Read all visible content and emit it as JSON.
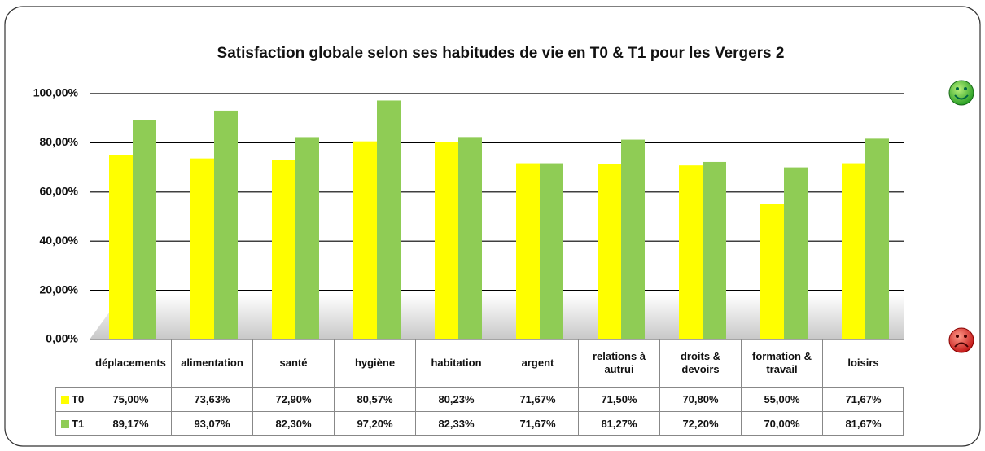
{
  "chart_data": {
    "type": "bar",
    "title": "Satisfaction  globale selon ses habitudes de vie en T0 & T1 pour les Vergers 2",
    "categories": [
      "déplacements",
      "alimentation",
      "santé",
      "hygiène",
      "habitation",
      "argent",
      "relations à autrui",
      "droits & devoirs",
      "formation & travail",
      "loisirs"
    ],
    "series": [
      {
        "name": "T0",
        "color": "#ffff00",
        "values": [
          75.0,
          73.63,
          72.9,
          80.57,
          80.23,
          71.67,
          71.5,
          70.8,
          55.0,
          71.67
        ],
        "value_labels": [
          "75,00%",
          "73,63%",
          "72,90%",
          "80,57%",
          "80,23%",
          "71,67%",
          "71,50%",
          "70,80%",
          "55,00%",
          "71,67%"
        ]
      },
      {
        "name": "T1",
        "color": "#8fcc55",
        "values": [
          89.17,
          93.07,
          82.3,
          97.2,
          82.33,
          71.67,
          81.27,
          72.2,
          70.0,
          81.67
        ],
        "value_labels": [
          "89,17%",
          "93,07%",
          "82,30%",
          "97,20%",
          "82,33%",
          "71,67%",
          "81,27%",
          "72,20%",
          "70,00%",
          "81,67%"
        ]
      }
    ],
    "ylim": [
      0,
      100
    ],
    "yticks": [
      {
        "value": 0,
        "label": "0,00%"
      },
      {
        "value": 20,
        "label": "20,00%"
      },
      {
        "value": 40,
        "label": "40,00%"
      },
      {
        "value": 60,
        "label": "60,00%"
      },
      {
        "value": 80,
        "label": "80,00%"
      },
      {
        "value": 100,
        "label": "100,00%"
      }
    ],
    "grid": true
  }
}
